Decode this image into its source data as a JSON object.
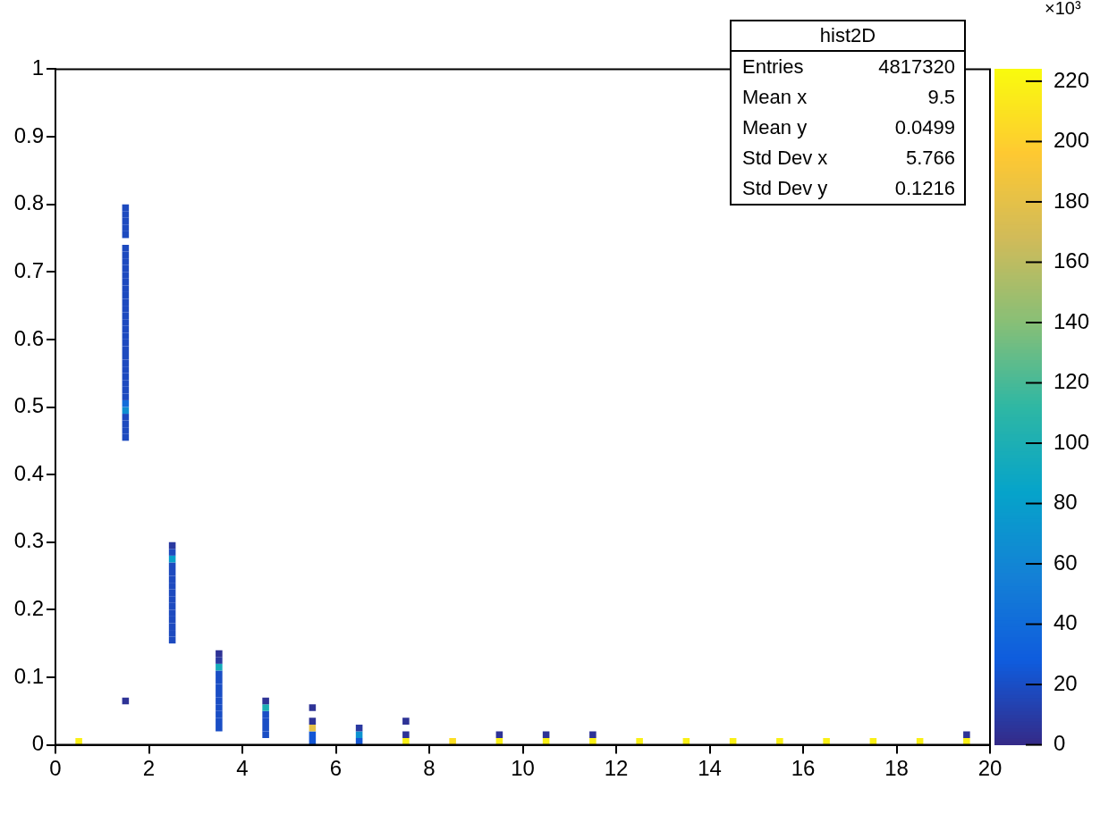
{
  "chart_data": {
    "type": "scatter",
    "marker": "square",
    "clabel": "×10³",
    "clim": [
      0,
      224
    ],
    "cticks": [
      0,
      20,
      40,
      60,
      80,
      100,
      120,
      140,
      160,
      180,
      200,
      220
    ],
    "xlim": [
      0,
      20
    ],
    "xticks": [
      0,
      2,
      4,
      6,
      8,
      10,
      12,
      14,
      16,
      18,
      20
    ],
    "ylim": [
      0,
      1
    ],
    "yticks": [
      0,
      0.1,
      0.2,
      0.3,
      0.4,
      0.5,
      0.6,
      0.7,
      0.8,
      0.9,
      1
    ],
    "annotations": [
      "hist2D",
      "Entries",
      "4817320",
      "Mean x",
      "9.5",
      "Mean y",
      "0.0499",
      "Std Dev x",
      "5.766",
      "Std Dev y",
      "0.1216"
    ],
    "series": [
      {
        "x": [
          0.5,
          1.5,
          1.5,
          1.5,
          1.5,
          1.5,
          1.5,
          1.5,
          1.5,
          1.5,
          1.5,
          1.5,
          1.5,
          1.5,
          1.5,
          1.5,
          1.5,
          1.5,
          1.5,
          1.5,
          1.5,
          1.5,
          1.5,
          1.5,
          1.5,
          1.5,
          1.5,
          1.5,
          1.5,
          1.5,
          1.5,
          1.5,
          1.5,
          1.5,
          1.5,
          1.5,
          2.5,
          2.5,
          2.5,
          2.5,
          2.5,
          2.5,
          2.5,
          2.5,
          2.5,
          2.5,
          2.5,
          2.5,
          2.5,
          2.5,
          2.5,
          3.5,
          3.5,
          3.5,
          3.5,
          3.5,
          3.5,
          3.5,
          3.5,
          3.5,
          3.5,
          3.5,
          3.5,
          4.5,
          4.5,
          4.5,
          4.5,
          4.5,
          4.5,
          5.5,
          5.5,
          5.5,
          5.5,
          5.5,
          6.5,
          6.5,
          6.5,
          7.5,
          7.5,
          7.5,
          8.5,
          9.5,
          9.5,
          10.5,
          10.5,
          11.5,
          11.5,
          12.5,
          13.5,
          14.5,
          15.5,
          16.5,
          17.5,
          18.5,
          19.5,
          19.5
        ],
        "values": [
          0.005,
          0.065,
          0.455,
          0.465,
          0.475,
          0.485,
          0.495,
          0.505,
          0.515,
          0.525,
          0.535,
          0.545,
          0.555,
          0.565,
          0.575,
          0.585,
          0.595,
          0.605,
          0.615,
          0.625,
          0.635,
          0.645,
          0.655,
          0.665,
          0.675,
          0.685,
          0.695,
          0.705,
          0.715,
          0.725,
          0.735,
          0.755,
          0.765,
          0.775,
          0.785,
          0.795,
          0.155,
          0.165,
          0.175,
          0.185,
          0.195,
          0.205,
          0.215,
          0.225,
          0.235,
          0.245,
          0.255,
          0.265,
          0.275,
          0.285,
          0.295,
          0.025,
          0.035,
          0.045,
          0.055,
          0.065,
          0.075,
          0.085,
          0.095,
          0.105,
          0.115,
          0.125,
          0.135,
          0.015,
          0.025,
          0.035,
          0.045,
          0.055,
          0.065,
          0.005,
          0.015,
          0.025,
          0.035,
          0.055,
          0.005,
          0.015,
          0.025,
          0.005,
          0.015,
          0.035,
          0.005,
          0.005,
          0.015,
          0.005,
          0.015,
          0.005,
          0.015,
          0.005,
          0.005,
          0.005,
          0.005,
          0.005,
          0.005,
          0.005,
          0.005,
          0.015
        ],
        "cvalues": [
          218,
          5,
          18,
          18,
          18,
          18,
          67,
          40,
          18,
          18,
          18,
          18,
          18,
          18,
          18,
          18,
          18,
          18,
          18,
          18,
          18,
          18,
          18,
          18,
          18,
          18,
          18,
          18,
          18,
          18,
          18,
          18,
          18,
          18,
          18,
          18,
          18,
          18,
          18,
          18,
          18,
          18,
          18,
          18,
          18,
          18,
          18,
          18,
          80,
          18,
          8,
          20,
          20,
          20,
          20,
          20,
          20,
          20,
          20,
          20,
          95,
          8,
          5,
          20,
          20,
          20,
          20,
          100,
          5,
          25,
          25,
          180,
          5,
          5,
          25,
          70,
          8,
          218,
          5,
          5,
          208,
          218,
          5,
          218,
          5,
          218,
          5,
          218,
          218,
          218,
          218,
          218,
          218,
          218,
          218,
          5
        ]
      }
    ]
  }
}
